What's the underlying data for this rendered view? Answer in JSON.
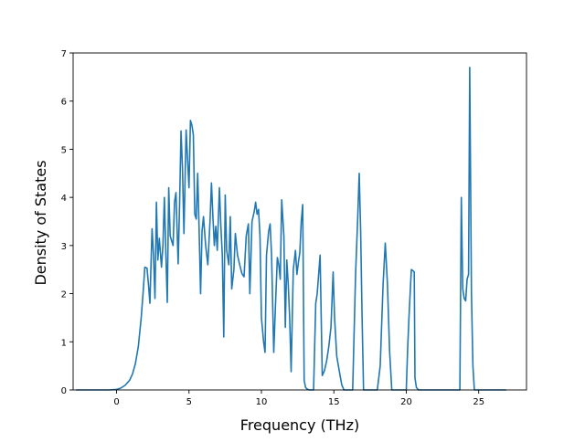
{
  "chart_data": {
    "type": "line",
    "title": "",
    "xlabel": "Frequency (THz)",
    "ylabel": "Density of States",
    "xlim": [
      -3.0,
      28.3
    ],
    "ylim": [
      0,
      7
    ],
    "xticks": [
      0,
      5,
      10,
      15,
      20,
      25
    ],
    "yticks": [
      0,
      1,
      2,
      3,
      4,
      5,
      6,
      7
    ],
    "grid": false,
    "legend": "none",
    "series": [
      {
        "color": "#1f77b4",
        "points": [
          [
            -2.8,
            0
          ],
          [
            -1.5,
            0
          ],
          [
            -0.5,
            0
          ],
          [
            0,
            0.01
          ],
          [
            0.3,
            0.04
          ],
          [
            0.6,
            0.1
          ],
          [
            0.9,
            0.2
          ],
          [
            1.1,
            0.33
          ],
          [
            1.3,
            0.55
          ],
          [
            1.5,
            0.9
          ],
          [
            1.7,
            1.5
          ],
          [
            1.85,
            2.1
          ],
          [
            1.95,
            2.55
          ],
          [
            2.1,
            2.53
          ],
          [
            2.2,
            2.2
          ],
          [
            2.3,
            1.8
          ],
          [
            2.45,
            3.35
          ],
          [
            2.55,
            2.8
          ],
          [
            2.65,
            1.9
          ],
          [
            2.75,
            3.9
          ],
          [
            2.85,
            2.7
          ],
          [
            2.95,
            3.15
          ],
          [
            3.1,
            2.55
          ],
          [
            3.2,
            3.0
          ],
          [
            3.3,
            4.0
          ],
          [
            3.4,
            2.85
          ],
          [
            3.5,
            1.82
          ],
          [
            3.6,
            4.2
          ],
          [
            3.7,
            3.2
          ],
          [
            3.8,
            3.1
          ],
          [
            3.9,
            3.0
          ],
          [
            4.0,
            3.9
          ],
          [
            4.1,
            4.1
          ],
          [
            4.25,
            2.62
          ],
          [
            4.35,
            3.85
          ],
          [
            4.45,
            5.38
          ],
          [
            4.55,
            4.6
          ],
          [
            4.65,
            3.25
          ],
          [
            4.8,
            5.4
          ],
          [
            4.9,
            4.8
          ],
          [
            5.0,
            4.2
          ],
          [
            5.1,
            5.6
          ],
          [
            5.2,
            5.5
          ],
          [
            5.3,
            5.3
          ],
          [
            5.4,
            3.65
          ],
          [
            5.5,
            3.55
          ],
          [
            5.6,
            4.5
          ],
          [
            5.7,
            3.3
          ],
          [
            5.8,
            2.0
          ],
          [
            5.9,
            3.3
          ],
          [
            6.0,
            3.6
          ],
          [
            6.15,
            3.0
          ],
          [
            6.3,
            2.6
          ],
          [
            6.45,
            3.5
          ],
          [
            6.55,
            4.3
          ],
          [
            6.65,
            3.6
          ],
          [
            6.75,
            3.0
          ],
          [
            6.85,
            3.4
          ],
          [
            6.95,
            2.9
          ],
          [
            7.1,
            4.2
          ],
          [
            7.2,
            3.4
          ],
          [
            7.3,
            2.8
          ],
          [
            7.4,
            1.1
          ],
          [
            7.5,
            4.05
          ],
          [
            7.6,
            2.9
          ],
          [
            7.75,
            2.6
          ],
          [
            7.85,
            3.6
          ],
          [
            7.95,
            2.1
          ],
          [
            8.1,
            2.5
          ],
          [
            8.2,
            3.25
          ],
          [
            8.35,
            2.8
          ],
          [
            8.5,
            2.6
          ],
          [
            8.65,
            2.42
          ],
          [
            8.8,
            2.35
          ],
          [
            8.95,
            3.2
          ],
          [
            9.1,
            3.45
          ],
          [
            9.2,
            2.0
          ],
          [
            9.35,
            3.5
          ],
          [
            9.5,
            3.7
          ],
          [
            9.6,
            3.9
          ],
          [
            9.7,
            3.65
          ],
          [
            9.8,
            3.75
          ],
          [
            9.9,
            3.2
          ],
          [
            10.0,
            1.5
          ],
          [
            10.15,
            1.0
          ],
          [
            10.25,
            0.78
          ],
          [
            10.35,
            2.8
          ],
          [
            10.5,
            3.3
          ],
          [
            10.6,
            3.45
          ],
          [
            10.7,
            2.8
          ],
          [
            10.85,
            0.78
          ],
          [
            11.0,
            2.0
          ],
          [
            11.1,
            2.75
          ],
          [
            11.2,
            2.6
          ],
          [
            11.3,
            2.3
          ],
          [
            11.4,
            3.95
          ],
          [
            11.55,
            3.2
          ],
          [
            11.65,
            1.3
          ],
          [
            11.75,
            2.7
          ],
          [
            11.85,
            2.2
          ],
          [
            11.95,
            1.5
          ],
          [
            12.05,
            0.38
          ],
          [
            12.2,
            2.5
          ],
          [
            12.35,
            2.9
          ],
          [
            12.45,
            2.4
          ],
          [
            12.55,
            2.65
          ],
          [
            12.65,
            2.85
          ],
          [
            12.75,
            3.5
          ],
          [
            12.85,
            3.85
          ],
          [
            12.95,
            0.2
          ],
          [
            13.05,
            0.05
          ],
          [
            13.15,
            0.02
          ],
          [
            13.3,
            0
          ],
          [
            13.45,
            0
          ],
          [
            13.6,
            0
          ],
          [
            13.75,
            1.8
          ],
          [
            13.85,
            2.0
          ],
          [
            13.95,
            2.4
          ],
          [
            14.05,
            2.8
          ],
          [
            14.2,
            0.3
          ],
          [
            14.35,
            0.4
          ],
          [
            14.5,
            0.6
          ],
          [
            14.65,
            0.9
          ],
          [
            14.8,
            1.3
          ],
          [
            14.95,
            2.45
          ],
          [
            15.05,
            1.5
          ],
          [
            15.2,
            0.7
          ],
          [
            15.4,
            0.35
          ],
          [
            15.55,
            0.1
          ],
          [
            15.7,
            0
          ],
          [
            16.3,
            0
          ],
          [
            16.5,
            2.4
          ],
          [
            16.65,
            3.6
          ],
          [
            16.75,
            4.5
          ],
          [
            16.85,
            3.3
          ],
          [
            16.95,
            1.5
          ],
          [
            17.05,
            0
          ],
          [
            17.5,
            0
          ],
          [
            18.0,
            0
          ],
          [
            18.2,
            0.5
          ],
          [
            18.4,
            2.2
          ],
          [
            18.55,
            3.05
          ],
          [
            18.7,
            2.2
          ],
          [
            18.85,
            0.8
          ],
          [
            19.0,
            0
          ],
          [
            19.5,
            0
          ],
          [
            20.0,
            0
          ],
          [
            20.1,
            0.9
          ],
          [
            20.2,
            1.6
          ],
          [
            20.35,
            2.5
          ],
          [
            20.45,
            2.48
          ],
          [
            20.55,
            2.45
          ],
          [
            20.6,
            0.25
          ],
          [
            20.7,
            0.05
          ],
          [
            20.85,
            0
          ],
          [
            22.0,
            0
          ],
          [
            23.0,
            0
          ],
          [
            23.7,
            0
          ],
          [
            23.8,
            4.0
          ],
          [
            23.9,
            2.1
          ],
          [
            24.0,
            1.9
          ],
          [
            24.1,
            1.85
          ],
          [
            24.2,
            2.3
          ],
          [
            24.3,
            2.4
          ],
          [
            24.38,
            6.7
          ],
          [
            24.5,
            2.0
          ],
          [
            24.6,
            0.5
          ],
          [
            24.7,
            0
          ],
          [
            25.5,
            0
          ],
          [
            26.9,
            0
          ]
        ]
      }
    ]
  }
}
